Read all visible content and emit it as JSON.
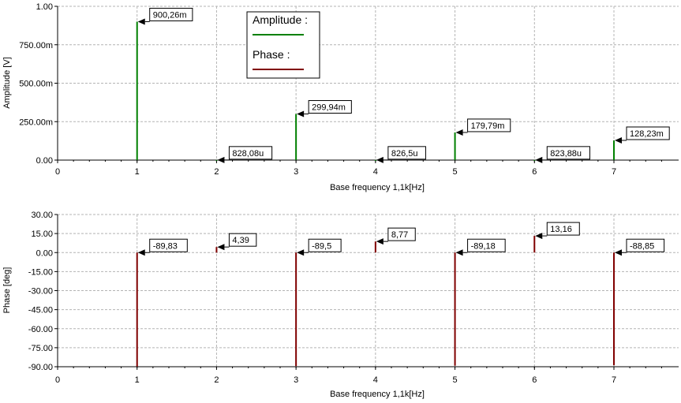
{
  "chart_data": [
    {
      "type": "bar",
      "xlabel": "Base frequency 1,1k[Hz]",
      "ylabel": "Amplitude [V]",
      "ylim": [
        0,
        1
      ],
      "xlim": [
        0,
        7.8
      ],
      "yticks": [
        "0.00",
        "250.00m",
        "500.00m",
        "750.00m",
        "1.00"
      ],
      "xticks": [
        "0",
        "1",
        "2",
        "3",
        "4",
        "5",
        "6",
        "7"
      ],
      "grid": true,
      "legend": {
        "position": "top-center",
        "entries": [
          {
            "label": "Amplitude :",
            "color": "#008000"
          },
          {
            "label": "Phase :",
            "color": "#800000"
          }
        ]
      },
      "series": [
        {
          "name": "Amplitude",
          "color": "#008000",
          "x": [
            1,
            2,
            3,
            4,
            5,
            6,
            7
          ],
          "values": [
            0.90026,
            0.00082808,
            0.29994,
            0.0008265,
            0.17979,
            0.00082388,
            0.12823
          ],
          "labels": [
            "900,26m",
            "828,08u",
            "299,94m",
            "826,5u",
            "179,79m",
            "823,88u",
            "128,23m"
          ]
        }
      ]
    },
    {
      "type": "bar",
      "xlabel": "Base frequency 1,1k[Hz]",
      "ylabel": "Phase [deg]",
      "ylim": [
        -90,
        30
      ],
      "xlim": [
        0,
        7.8
      ],
      "yticks": [
        "30.00",
        "15.00",
        "0.00",
        "-15.00",
        "-30.00",
        "-45.00",
        "-60.00",
        "-75.00",
        "-90.00"
      ],
      "xticks": [
        "0",
        "1",
        "2",
        "3",
        "4",
        "5",
        "6",
        "7"
      ],
      "grid": true,
      "series": [
        {
          "name": "Phase",
          "color": "#800000",
          "x": [
            1,
            2,
            3,
            4,
            5,
            6,
            7
          ],
          "values": [
            -89.83,
            4.39,
            -89.5,
            8.77,
            -89.18,
            13.16,
            -88.85
          ],
          "labels": [
            "-89,83",
            "4,39",
            "-89,5",
            "8,77",
            "-89,18",
            "13,16",
            "-88,85"
          ]
        }
      ]
    }
  ]
}
